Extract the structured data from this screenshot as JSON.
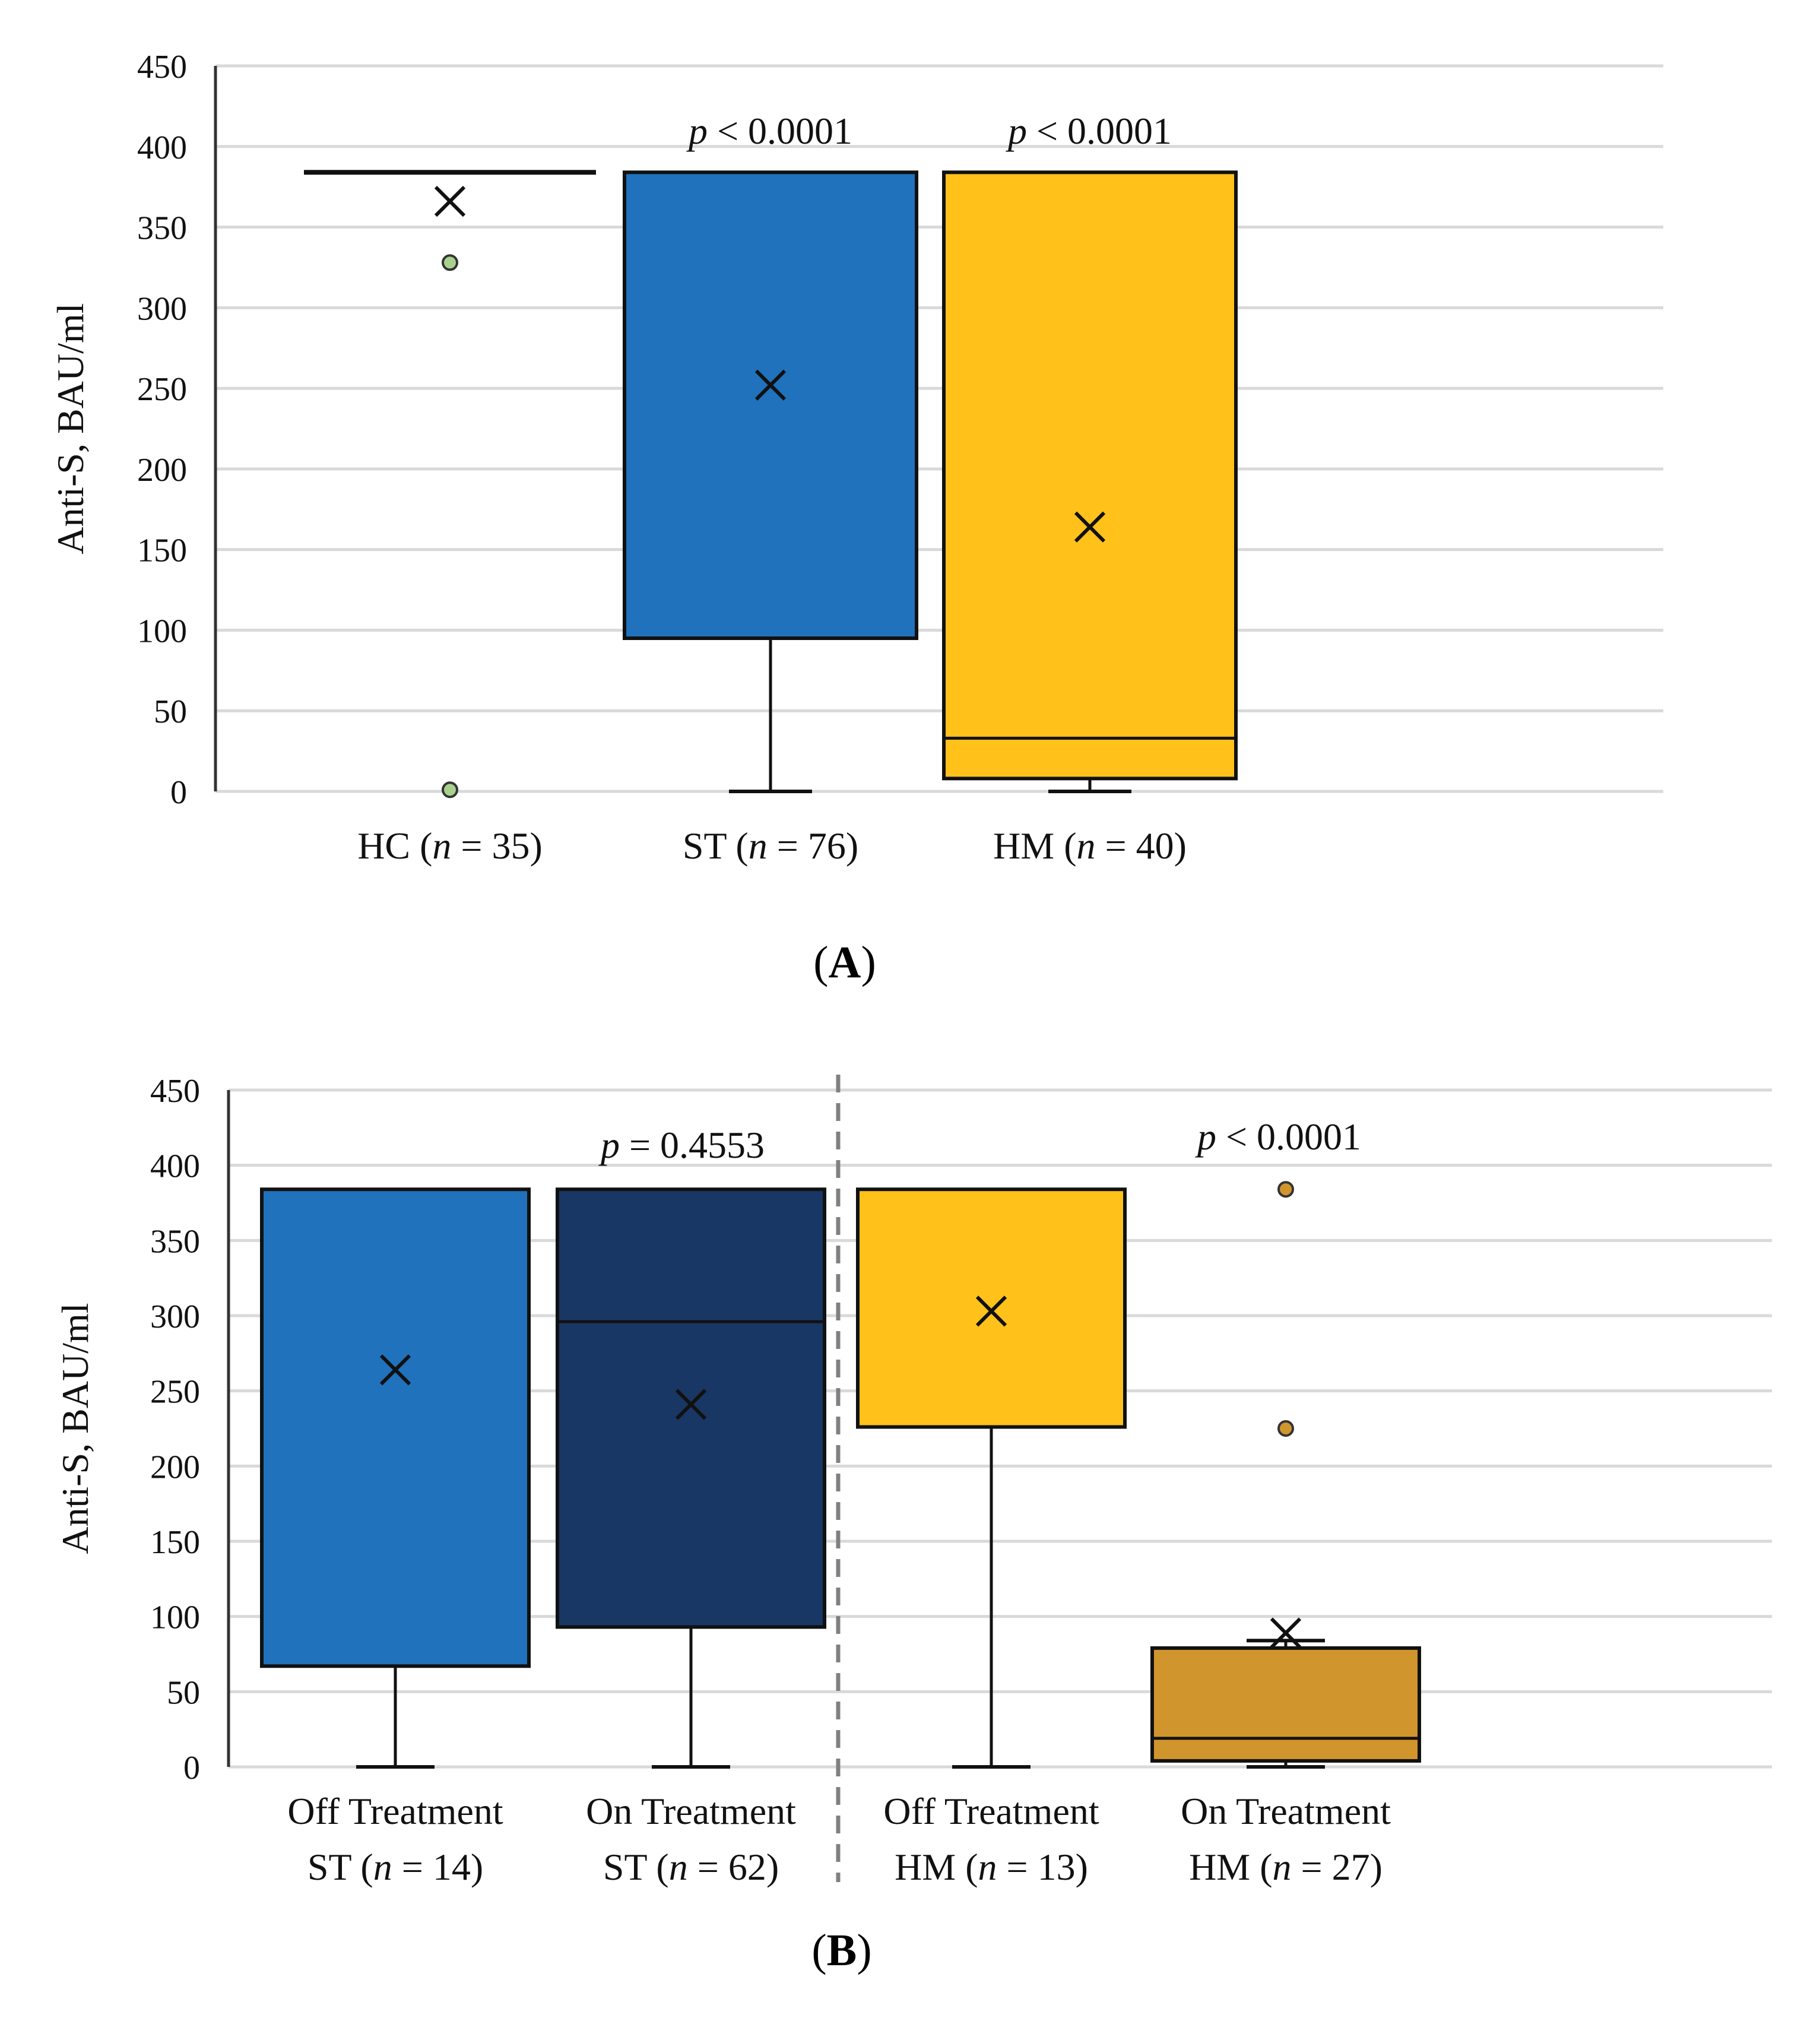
{
  "chart_data": [
    {
      "type": "box",
      "panel_label": "A",
      "ylabel": "Anti-S, BAU/ml",
      "ylim": [
        0,
        450
      ],
      "yticks": [
        0,
        50,
        100,
        150,
        200,
        250,
        300,
        350,
        400,
        450
      ],
      "grid": true,
      "groups": [
        {
          "label_pre": "HC (",
          "label_n": "n",
          "label_post": " = 35)",
          "color": "#ffffff",
          "min": 384,
          "q1": 384,
          "median": 384,
          "q3": 384,
          "max": 384,
          "mean": 366,
          "outliers": [
            328,
            1
          ],
          "outlier_color": "#a9d18e"
        },
        {
          "label_pre": "ST (",
          "label_n": "n",
          "label_post": " = 76)",
          "color": "#1f72bb",
          "min": 0,
          "q1": 95,
          "median": 384,
          "q3": 384,
          "max": 384,
          "mean": 252,
          "outliers": [],
          "p_pre": "p",
          "p_post": " < 0.0001"
        },
        {
          "label_pre": "HM (",
          "label_n": "n",
          "label_post": " = 40)",
          "color": "#ffc11a",
          "min": 0,
          "q1": 8,
          "median": 33,
          "q3": 384,
          "max": 384,
          "mean": 164,
          "outliers": [],
          "p_pre": "p",
          "p_post": " < 0.0001"
        }
      ]
    },
    {
      "type": "box",
      "panel_label": "B",
      "ylabel": "Anti-S, BAU/ml",
      "ylim": [
        0,
        450
      ],
      "yticks": [
        0,
        50,
        100,
        150,
        200,
        250,
        300,
        350,
        400,
        450
      ],
      "grid": true,
      "comparisons": [
        {
          "p_pre": "p",
          "p_post": " = 0.4553"
        },
        {
          "p_pre": "p",
          "p_post": " < 0.0001"
        }
      ],
      "groups": [
        {
          "line1": "Off Treatment",
          "label_pre": "ST (",
          "label_n": "n",
          "label_post": " = 14)",
          "color": "#1f72bb",
          "min": 0,
          "q1": 67,
          "median": 384,
          "q3": 384,
          "max": 384,
          "mean": 264,
          "outliers": []
        },
        {
          "line1": "On Treatment",
          "label_pre": "ST (",
          "label_n": "n",
          "label_post": " = 62)",
          "color": "#193764",
          "min": 0,
          "q1": 93,
          "median": 296,
          "q3": 384,
          "max": 384,
          "mean": 241,
          "outliers": []
        },
        {
          "line1": "Off Treatment",
          "label_pre": "HM (",
          "label_n": "n",
          "label_post": " = 13)",
          "color": "#ffc11a",
          "min": 0,
          "q1": 226,
          "median": 384,
          "q3": 384,
          "max": 384,
          "mean": 303,
          "outliers": []
        },
        {
          "line1": "On Treatment",
          "label_pre": "HM (",
          "label_n": "n",
          "label_post": " = 27)",
          "color": "#d1952d",
          "min": 0,
          "q1": 4,
          "median": 19,
          "q3": 79,
          "max": 84,
          "mean": 89,
          "outliers": [
            384,
            225
          ],
          "outlier_color": "#d1952d"
        }
      ]
    }
  ]
}
